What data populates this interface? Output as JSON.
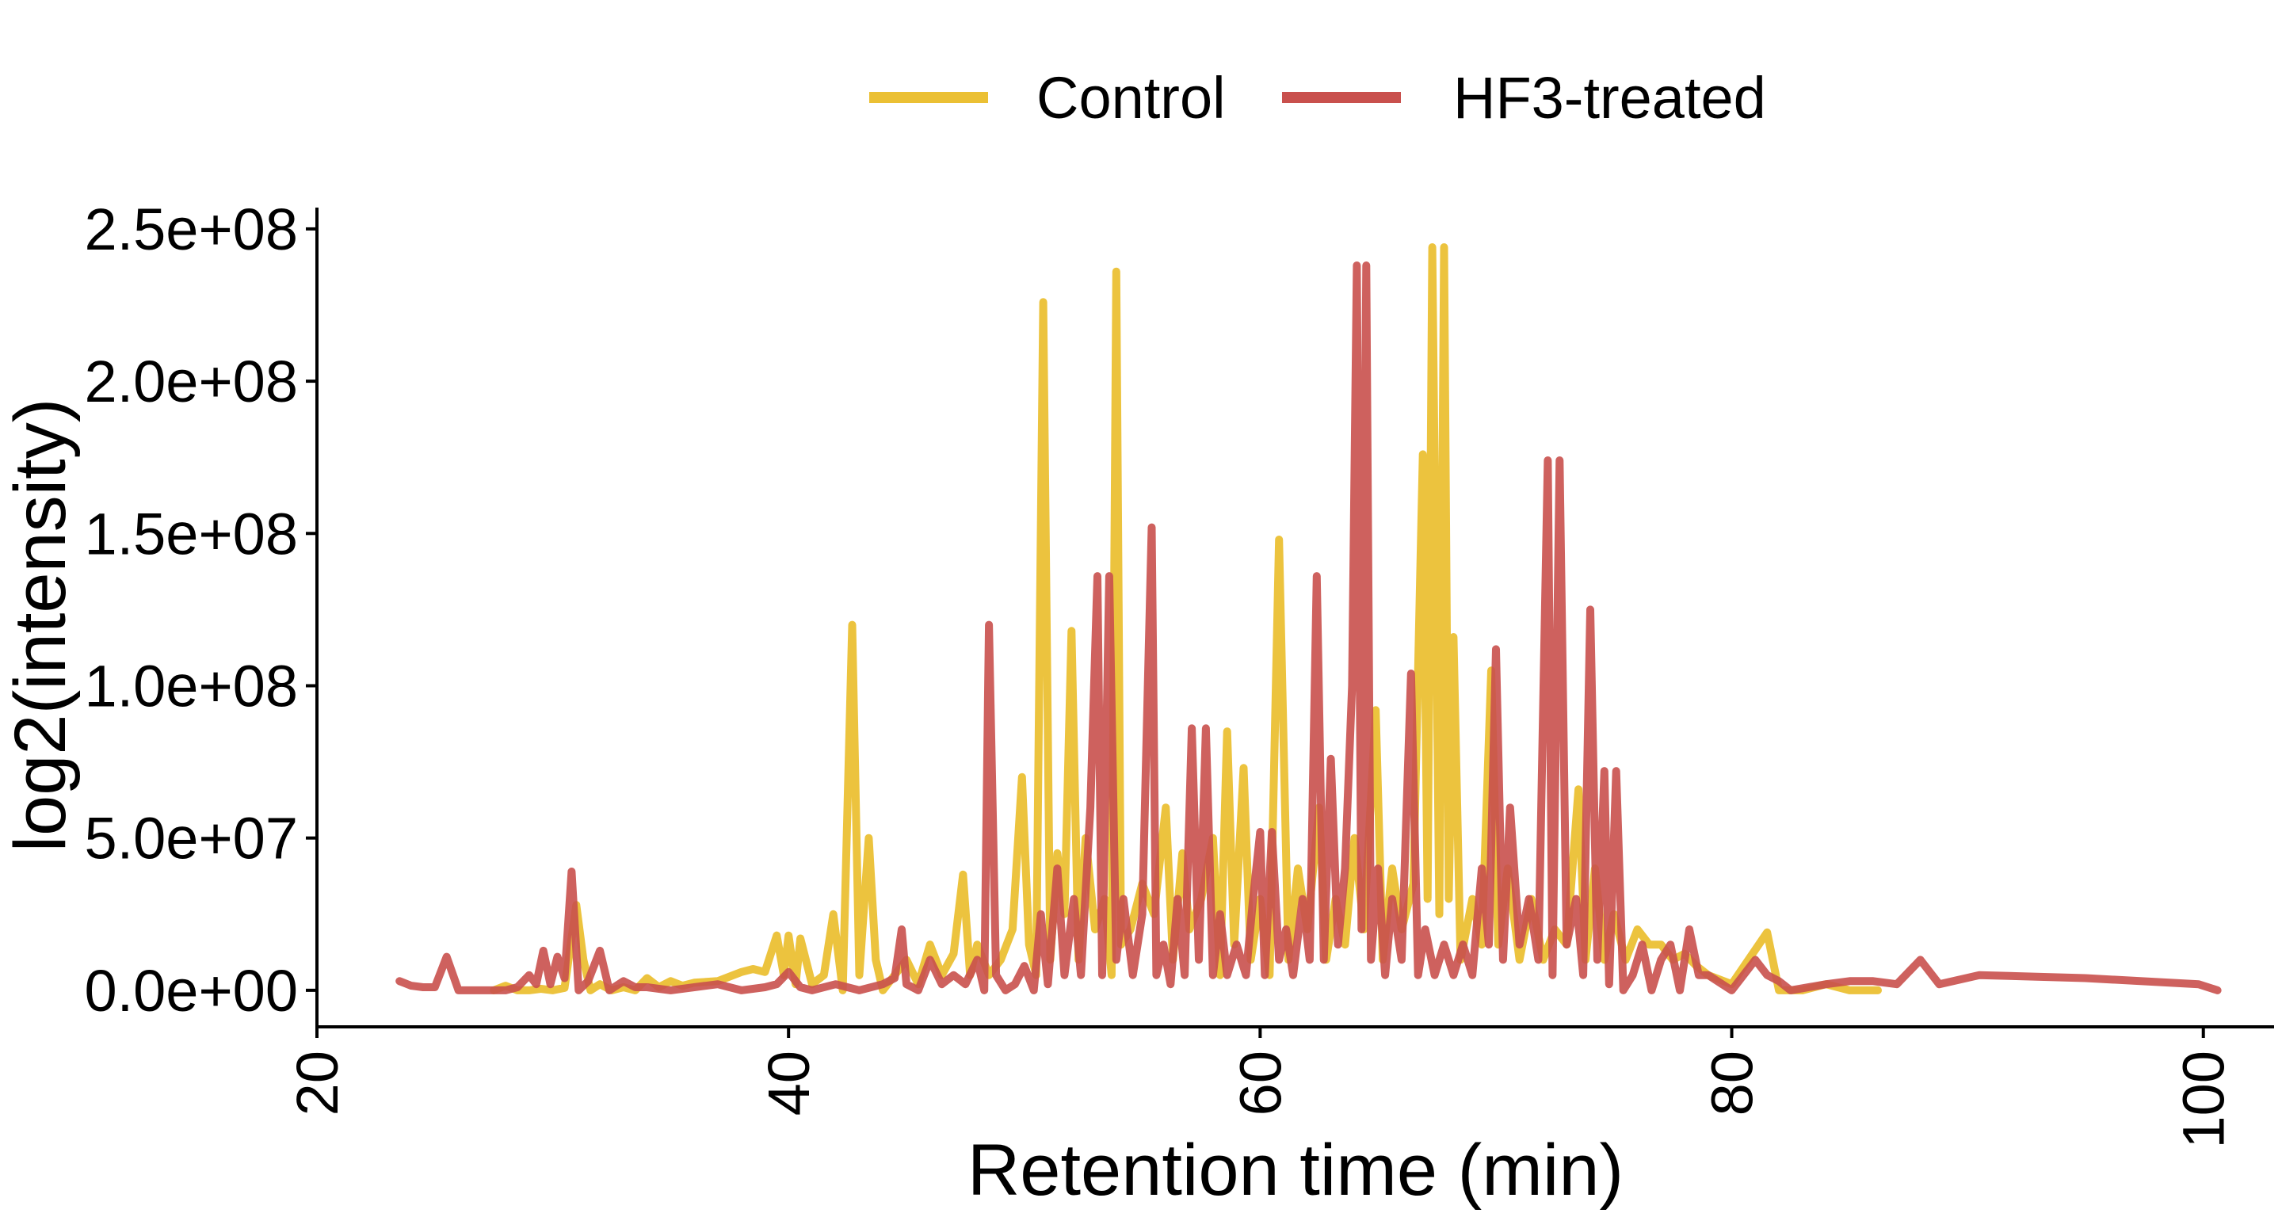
{
  "chart_data": {
    "type": "line",
    "title": "",
    "xlabel": "Retention time (min)",
    "ylabel": "log2(intensity)",
    "xlim": [
      20,
      103
    ],
    "ylim": [
      -12000000,
      257000000
    ],
    "x_ticks": [
      20,
      40,
      60,
      80,
      100
    ],
    "x_tick_labels": [
      "20",
      "40",
      "60",
      "80",
      "100"
    ],
    "y_ticks": [
      0,
      50000000,
      100000000,
      150000000,
      200000000,
      250000000
    ],
    "y_tick_labels": [
      "0.0e+00",
      "5.0e+07",
      "1.0e+08",
      "1.5e+08",
      "2.0e+08",
      "2.5e+08"
    ],
    "grid": false,
    "legend_position": "top",
    "series": [
      {
        "name": "Control",
        "color": "#EBC034",
        "points": [
          [
            27.5,
            0
          ],
          [
            28.0,
            1500000
          ],
          [
            28.5,
            0
          ],
          [
            29.0,
            0
          ],
          [
            29.5,
            500000
          ],
          [
            30.0,
            0
          ],
          [
            30.5,
            800000
          ],
          [
            31.0,
            28000000
          ],
          [
            31.3,
            10000000
          ],
          [
            31.6,
            0
          ],
          [
            32.0,
            2000000
          ],
          [
            32.5,
            0
          ],
          [
            33.0,
            1000000
          ],
          [
            33.5,
            0
          ],
          [
            34.0,
            4000000
          ],
          [
            34.5,
            1000000
          ],
          [
            35.0,
            3000000
          ],
          [
            35.5,
            1500000
          ],
          [
            36.0,
            2500000
          ],
          [
            37.0,
            3000000
          ],
          [
            38.0,
            6000000
          ],
          [
            38.5,
            7000000
          ],
          [
            39.0,
            6000000
          ],
          [
            39.5,
            18000000
          ],
          [
            39.8,
            5000000
          ],
          [
            40.0,
            18000000
          ],
          [
            40.3,
            2000000
          ],
          [
            40.5,
            17000000
          ],
          [
            41.0,
            2000000
          ],
          [
            41.5,
            5000000
          ],
          [
            41.9,
            25000000
          ],
          [
            42.3,
            0
          ],
          [
            42.7,
            120000000
          ],
          [
            43.0,
            5000000
          ],
          [
            43.4,
            50000000
          ],
          [
            43.7,
            10000000
          ],
          [
            44.0,
            0
          ],
          [
            44.5,
            5000000
          ],
          [
            45.0,
            10000000
          ],
          [
            45.5,
            2000000
          ],
          [
            46.0,
            15000000
          ],
          [
            46.5,
            5000000
          ],
          [
            47.0,
            12000000
          ],
          [
            47.4,
            38000000
          ],
          [
            47.7,
            5000000
          ],
          [
            48.0,
            15000000
          ],
          [
            48.5,
            5000000
          ],
          [
            49.0,
            10000000
          ],
          [
            49.5,
            20000000
          ],
          [
            49.9,
            70000000
          ],
          [
            50.2,
            15000000
          ],
          [
            50.5,
            5000000
          ],
          [
            50.8,
            226000000
          ],
          [
            51.1,
            10000000
          ],
          [
            51.4,
            45000000
          ],
          [
            51.7,
            25000000
          ],
          [
            52.0,
            118000000
          ],
          [
            52.3,
            10000000
          ],
          [
            52.6,
            50000000
          ],
          [
            53.0,
            20000000
          ],
          [
            53.4,
            30000000
          ],
          [
            53.7,
            5000000
          ],
          [
            53.9,
            236000000
          ],
          [
            54.1,
            15000000
          ],
          [
            54.5,
            20000000
          ],
          [
            55.0,
            35000000
          ],
          [
            55.5,
            25000000
          ],
          [
            56.0,
            60000000
          ],
          [
            56.3,
            10000000
          ],
          [
            56.7,
            45000000
          ],
          [
            57.0,
            20000000
          ],
          [
            57.5,
            30000000
          ],
          [
            58.0,
            50000000
          ],
          [
            58.3,
            5000000
          ],
          [
            58.6,
            85000000
          ],
          [
            58.9,
            15000000
          ],
          [
            59.3,
            73000000
          ],
          [
            59.6,
            10000000
          ],
          [
            60.0,
            30000000
          ],
          [
            60.4,
            5000000
          ],
          [
            60.8,
            148000000
          ],
          [
            61.2,
            10000000
          ],
          [
            61.6,
            40000000
          ],
          [
            62.0,
            20000000
          ],
          [
            62.5,
            60000000
          ],
          [
            62.8,
            10000000
          ],
          [
            63.2,
            30000000
          ],
          [
            63.6,
            15000000
          ],
          [
            64.0,
            50000000
          ],
          [
            64.4,
            20000000
          ],
          [
            64.9,
            92000000
          ],
          [
            65.2,
            10000000
          ],
          [
            65.6,
            40000000
          ],
          [
            66.0,
            20000000
          ],
          [
            66.5,
            35000000
          ],
          [
            66.9,
            176000000
          ],
          [
            67.1,
            30000000
          ],
          [
            67.3,
            244000000
          ],
          [
            67.6,
            25000000
          ],
          [
            67.8,
            244000000
          ],
          [
            68.0,
            30000000
          ],
          [
            68.2,
            116000000
          ],
          [
            68.5,
            10000000
          ],
          [
            69.0,
            30000000
          ],
          [
            69.4,
            15000000
          ],
          [
            69.8,
            105000000
          ],
          [
            70.1,
            15000000
          ],
          [
            70.5,
            40000000
          ],
          [
            71.0,
            10000000
          ],
          [
            71.5,
            30000000
          ],
          [
            72.0,
            10000000
          ],
          [
            72.5,
            20000000
          ],
          [
            73.0,
            15000000
          ],
          [
            73.5,
            66000000
          ],
          [
            73.8,
            10000000
          ],
          [
            74.2,
            40000000
          ],
          [
            74.6,
            10000000
          ],
          [
            75.0,
            25000000
          ],
          [
            75.5,
            10000000
          ],
          [
            76.0,
            20000000
          ],
          [
            76.5,
            15000000
          ],
          [
            77.0,
            15000000
          ],
          [
            77.5,
            10000000
          ],
          [
            78.0,
            12000000
          ],
          [
            78.5,
            8000000
          ],
          [
            79.0,
            5000000
          ],
          [
            80.0,
            2000000
          ],
          [
            81.5,
            19000000
          ],
          [
            82.0,
            0
          ],
          [
            83.0,
            0
          ],
          [
            84.0,
            2000000
          ],
          [
            85.0,
            0
          ],
          [
            86.2,
            0
          ]
        ]
      },
      {
        "name": "HF3-treated",
        "color": "#C9504D",
        "points": [
          [
            23.5,
            3000000
          ],
          [
            24.0,
            1500000
          ],
          [
            24.5,
            1000000
          ],
          [
            25.0,
            1000000
          ],
          [
            25.5,
            11000000
          ],
          [
            26.0,
            0
          ],
          [
            27.0,
            0
          ],
          [
            28.0,
            0
          ],
          [
            28.5,
            1000000
          ],
          [
            29.0,
            5000000
          ],
          [
            29.3,
            2000000
          ],
          [
            29.6,
            13000000
          ],
          [
            29.9,
            2000000
          ],
          [
            30.2,
            11000000
          ],
          [
            30.5,
            4000000
          ],
          [
            30.8,
            39000000
          ],
          [
            31.1,
            0
          ],
          [
            31.5,
            3000000
          ],
          [
            32.0,
            13000000
          ],
          [
            32.4,
            0
          ],
          [
            33.0,
            3000000
          ],
          [
            33.5,
            1000000
          ],
          [
            34.0,
            1000000
          ],
          [
            35.0,
            0
          ],
          [
            36.0,
            1000000
          ],
          [
            37.0,
            2000000
          ],
          [
            38.0,
            0
          ],
          [
            39.0,
            1000000
          ],
          [
            39.5,
            2000000
          ],
          [
            40.0,
            6000000
          ],
          [
            40.5,
            1000000
          ],
          [
            41.0,
            0
          ],
          [
            42.0,
            2000000
          ],
          [
            43.0,
            0
          ],
          [
            44.0,
            2000000
          ],
          [
            44.5,
            4000000
          ],
          [
            44.8,
            20000000
          ],
          [
            45.0,
            2000000
          ],
          [
            45.5,
            0
          ],
          [
            46.0,
            10000000
          ],
          [
            46.5,
            2000000
          ],
          [
            47.0,
            5000000
          ],
          [
            47.5,
            2000000
          ],
          [
            48.0,
            10000000
          ],
          [
            48.3,
            0
          ],
          [
            48.5,
            120000000
          ],
          [
            48.8,
            5000000
          ],
          [
            49.2,
            0
          ],
          [
            49.6,
            2000000
          ],
          [
            50.0,
            8000000
          ],
          [
            50.4,
            0
          ],
          [
            50.7,
            25000000
          ],
          [
            51.0,
            2000000
          ],
          [
            51.4,
            40000000
          ],
          [
            51.7,
            5000000
          ],
          [
            52.1,
            30000000
          ],
          [
            52.4,
            5000000
          ],
          [
            52.8,
            60000000
          ],
          [
            53.1,
            136000000
          ],
          [
            53.3,
            5000000
          ],
          [
            53.6,
            136000000
          ],
          [
            53.9,
            10000000
          ],
          [
            54.2,
            30000000
          ],
          [
            54.6,
            5000000
          ],
          [
            55.0,
            25000000
          ],
          [
            55.4,
            152000000
          ],
          [
            55.6,
            5000000
          ],
          [
            55.9,
            15000000
          ],
          [
            56.2,
            2000000
          ],
          [
            56.5,
            30000000
          ],
          [
            56.8,
            5000000
          ],
          [
            57.1,
            86000000
          ],
          [
            57.4,
            10000000
          ],
          [
            57.7,
            86000000
          ],
          [
            58.0,
            5000000
          ],
          [
            58.3,
            25000000
          ],
          [
            58.6,
            5000000
          ],
          [
            59.0,
            15000000
          ],
          [
            59.4,
            5000000
          ],
          [
            59.7,
            30000000
          ],
          [
            60.0,
            52000000
          ],
          [
            60.2,
            5000000
          ],
          [
            60.5,
            52000000
          ],
          [
            60.8,
            10000000
          ],
          [
            61.1,
            20000000
          ],
          [
            61.4,
            5000000
          ],
          [
            61.8,
            30000000
          ],
          [
            62.1,
            10000000
          ],
          [
            62.4,
            136000000
          ],
          [
            62.7,
            10000000
          ],
          [
            63.0,
            76000000
          ],
          [
            63.3,
            15000000
          ],
          [
            63.6,
            40000000
          ],
          [
            63.9,
            100000000
          ],
          [
            64.1,
            238000000
          ],
          [
            64.3,
            20000000
          ],
          [
            64.5,
            238000000
          ],
          [
            64.7,
            10000000
          ],
          [
            65.0,
            40000000
          ],
          [
            65.3,
            5000000
          ],
          [
            65.6,
            30000000
          ],
          [
            66.0,
            10000000
          ],
          [
            66.4,
            104000000
          ],
          [
            66.7,
            5000000
          ],
          [
            67.0,
            20000000
          ],
          [
            67.4,
            5000000
          ],
          [
            67.8,
            15000000
          ],
          [
            68.2,
            5000000
          ],
          [
            68.6,
            15000000
          ],
          [
            69.0,
            5000000
          ],
          [
            69.4,
            40000000
          ],
          [
            69.7,
            15000000
          ],
          [
            70.0,
            112000000
          ],
          [
            70.3,
            10000000
          ],
          [
            70.6,
            60000000
          ],
          [
            71.0,
            15000000
          ],
          [
            71.4,
            30000000
          ],
          [
            71.8,
            10000000
          ],
          [
            72.2,
            174000000
          ],
          [
            72.4,
            5000000
          ],
          [
            72.7,
            174000000
          ],
          [
            73.0,
            15000000
          ],
          [
            73.4,
            30000000
          ],
          [
            73.7,
            5000000
          ],
          [
            74.0,
            125000000
          ],
          [
            74.3,
            10000000
          ],
          [
            74.6,
            72000000
          ],
          [
            74.8,
            2000000
          ],
          [
            75.1,
            72000000
          ],
          [
            75.4,
            0
          ],
          [
            75.8,
            5000000
          ],
          [
            76.2,
            15000000
          ],
          [
            76.6,
            0
          ],
          [
            77.0,
            10000000
          ],
          [
            77.4,
            15000000
          ],
          [
            77.8,
            0
          ],
          [
            78.2,
            20000000
          ],
          [
            78.6,
            5000000
          ],
          [
            79.0,
            5000000
          ],
          [
            80.0,
            0
          ],
          [
            81.0,
            10000000
          ],
          [
            81.5,
            5000000
          ],
          [
            82.0,
            3000000
          ],
          [
            82.5,
            0
          ],
          [
            84.0,
            2000000
          ],
          [
            85.0,
            3000000
          ],
          [
            86.0,
            3000000
          ],
          [
            87.0,
            2000000
          ],
          [
            88.0,
            10000000
          ],
          [
            88.8,
            2000000
          ],
          [
            90.5,
            5000000
          ],
          [
            95.0,
            4000000
          ],
          [
            99.8,
            2000000
          ],
          [
            100.6,
            0
          ]
        ]
      }
    ]
  }
}
